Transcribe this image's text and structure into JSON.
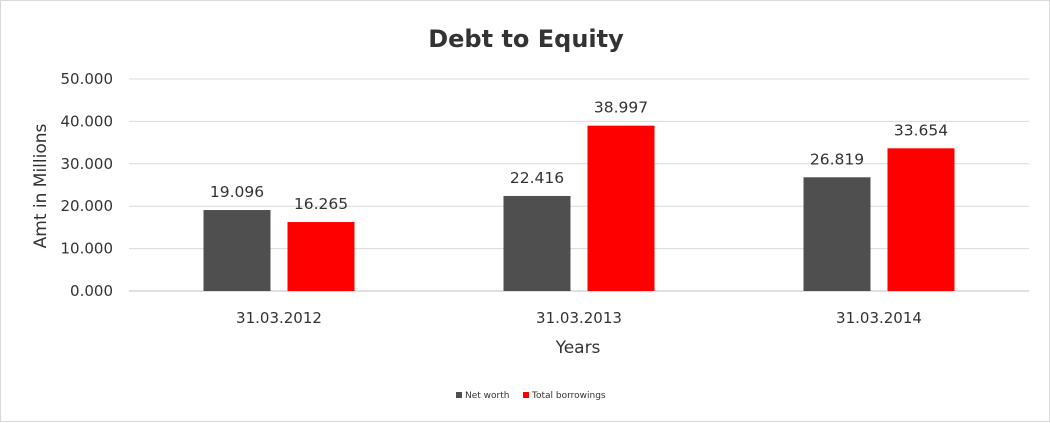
{
  "chart_data": {
    "type": "bar",
    "title": "Debt to Equity",
    "xlabel": "Years",
    "ylabel": "Amt in Millions",
    "categories": [
      "31.03.2012",
      "31.03.2013",
      "31.03.2014"
    ],
    "series": [
      {
        "name": "Net worth",
        "values": [
          19.096,
          22.416,
          26.819
        ],
        "color": "#4f4f4f"
      },
      {
        "name": "Total borrowings",
        "values": [
          16.265,
          38.997,
          33.654
        ],
        "color": "#ff0000"
      }
    ],
    "ylim": [
      0,
      50
    ],
    "yticks": [
      "0.000",
      "10.000",
      "20.000",
      "30.000",
      "40.000",
      "50.000"
    ],
    "data_labels": [
      [
        "19.096",
        "22.416",
        "26.819"
      ],
      [
        "16.265",
        "38.997",
        "33.654"
      ]
    ],
    "grid": true,
    "legend": "bottom"
  }
}
